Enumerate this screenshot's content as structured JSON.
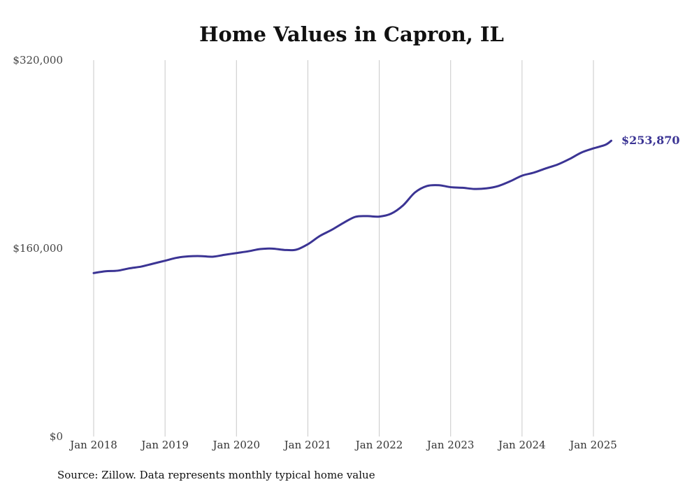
{
  "chart_data": {
    "type": "line",
    "title": "Home Values in Capron, IL",
    "xlabel": "",
    "ylabel": "",
    "ylim": [
      0,
      320000
    ],
    "yticks": [
      {
        "value": 0,
        "label": "$0"
      },
      {
        "value": 160000,
        "label": "$160,000"
      },
      {
        "value": 320000,
        "label": "$320,000"
      }
    ],
    "xticks": [
      {
        "value": "2018-01",
        "label": "Jan 2018"
      },
      {
        "value": "2019-01",
        "label": "Jan 2019"
      },
      {
        "value": "2020-01",
        "label": "Jan 2020"
      },
      {
        "value": "2021-01",
        "label": "Jan 2021"
      },
      {
        "value": "2022-01",
        "label": "Jan 2022"
      },
      {
        "value": "2023-01",
        "label": "Jan 2023"
      },
      {
        "value": "2024-01",
        "label": "Jan 2024"
      },
      {
        "value": "2025-01",
        "label": "Jan 2025"
      }
    ],
    "grid": {
      "vertical": true,
      "horizontal": false
    },
    "end_label": "$253,870",
    "series": [
      {
        "color": "#3b3494",
        "x": [
          "2018-01",
          "2018-03",
          "2018-05",
          "2018-07",
          "2018-09",
          "2018-11",
          "2019-01",
          "2019-03",
          "2019-05",
          "2019-07",
          "2019-09",
          "2019-11",
          "2020-01",
          "2020-03",
          "2020-05",
          "2020-07",
          "2020-09",
          "2020-11",
          "2021-01",
          "2021-03",
          "2021-05",
          "2021-07",
          "2021-09",
          "2021-11",
          "2022-01",
          "2022-03",
          "2022-05",
          "2022-07",
          "2022-09",
          "2022-11",
          "2023-01",
          "2023-03",
          "2023-05",
          "2023-07",
          "2023-09",
          "2023-11",
          "2024-01",
          "2024-03",
          "2024-05",
          "2024-07",
          "2024-09",
          "2024-11",
          "2025-01",
          "2025-03",
          "2025-04"
        ],
        "values": [
          139000,
          140500,
          141000,
          143000,
          144500,
          147000,
          149500,
          152000,
          153200,
          153400,
          152900,
          154500,
          156000,
          157500,
          159400,
          159800,
          158700,
          158800,
          163500,
          170500,
          175700,
          181700,
          186800,
          187400,
          187000,
          189500,
          196500,
          207500,
          213000,
          213700,
          212000,
          211500,
          210500,
          211000,
          213000,
          217000,
          221800,
          224400,
          228000,
          231300,
          236000,
          241500,
          245000,
          248000,
          251500
        ]
      }
    ]
  },
  "source": "Source: Zillow. Data represents monthly typical home value"
}
